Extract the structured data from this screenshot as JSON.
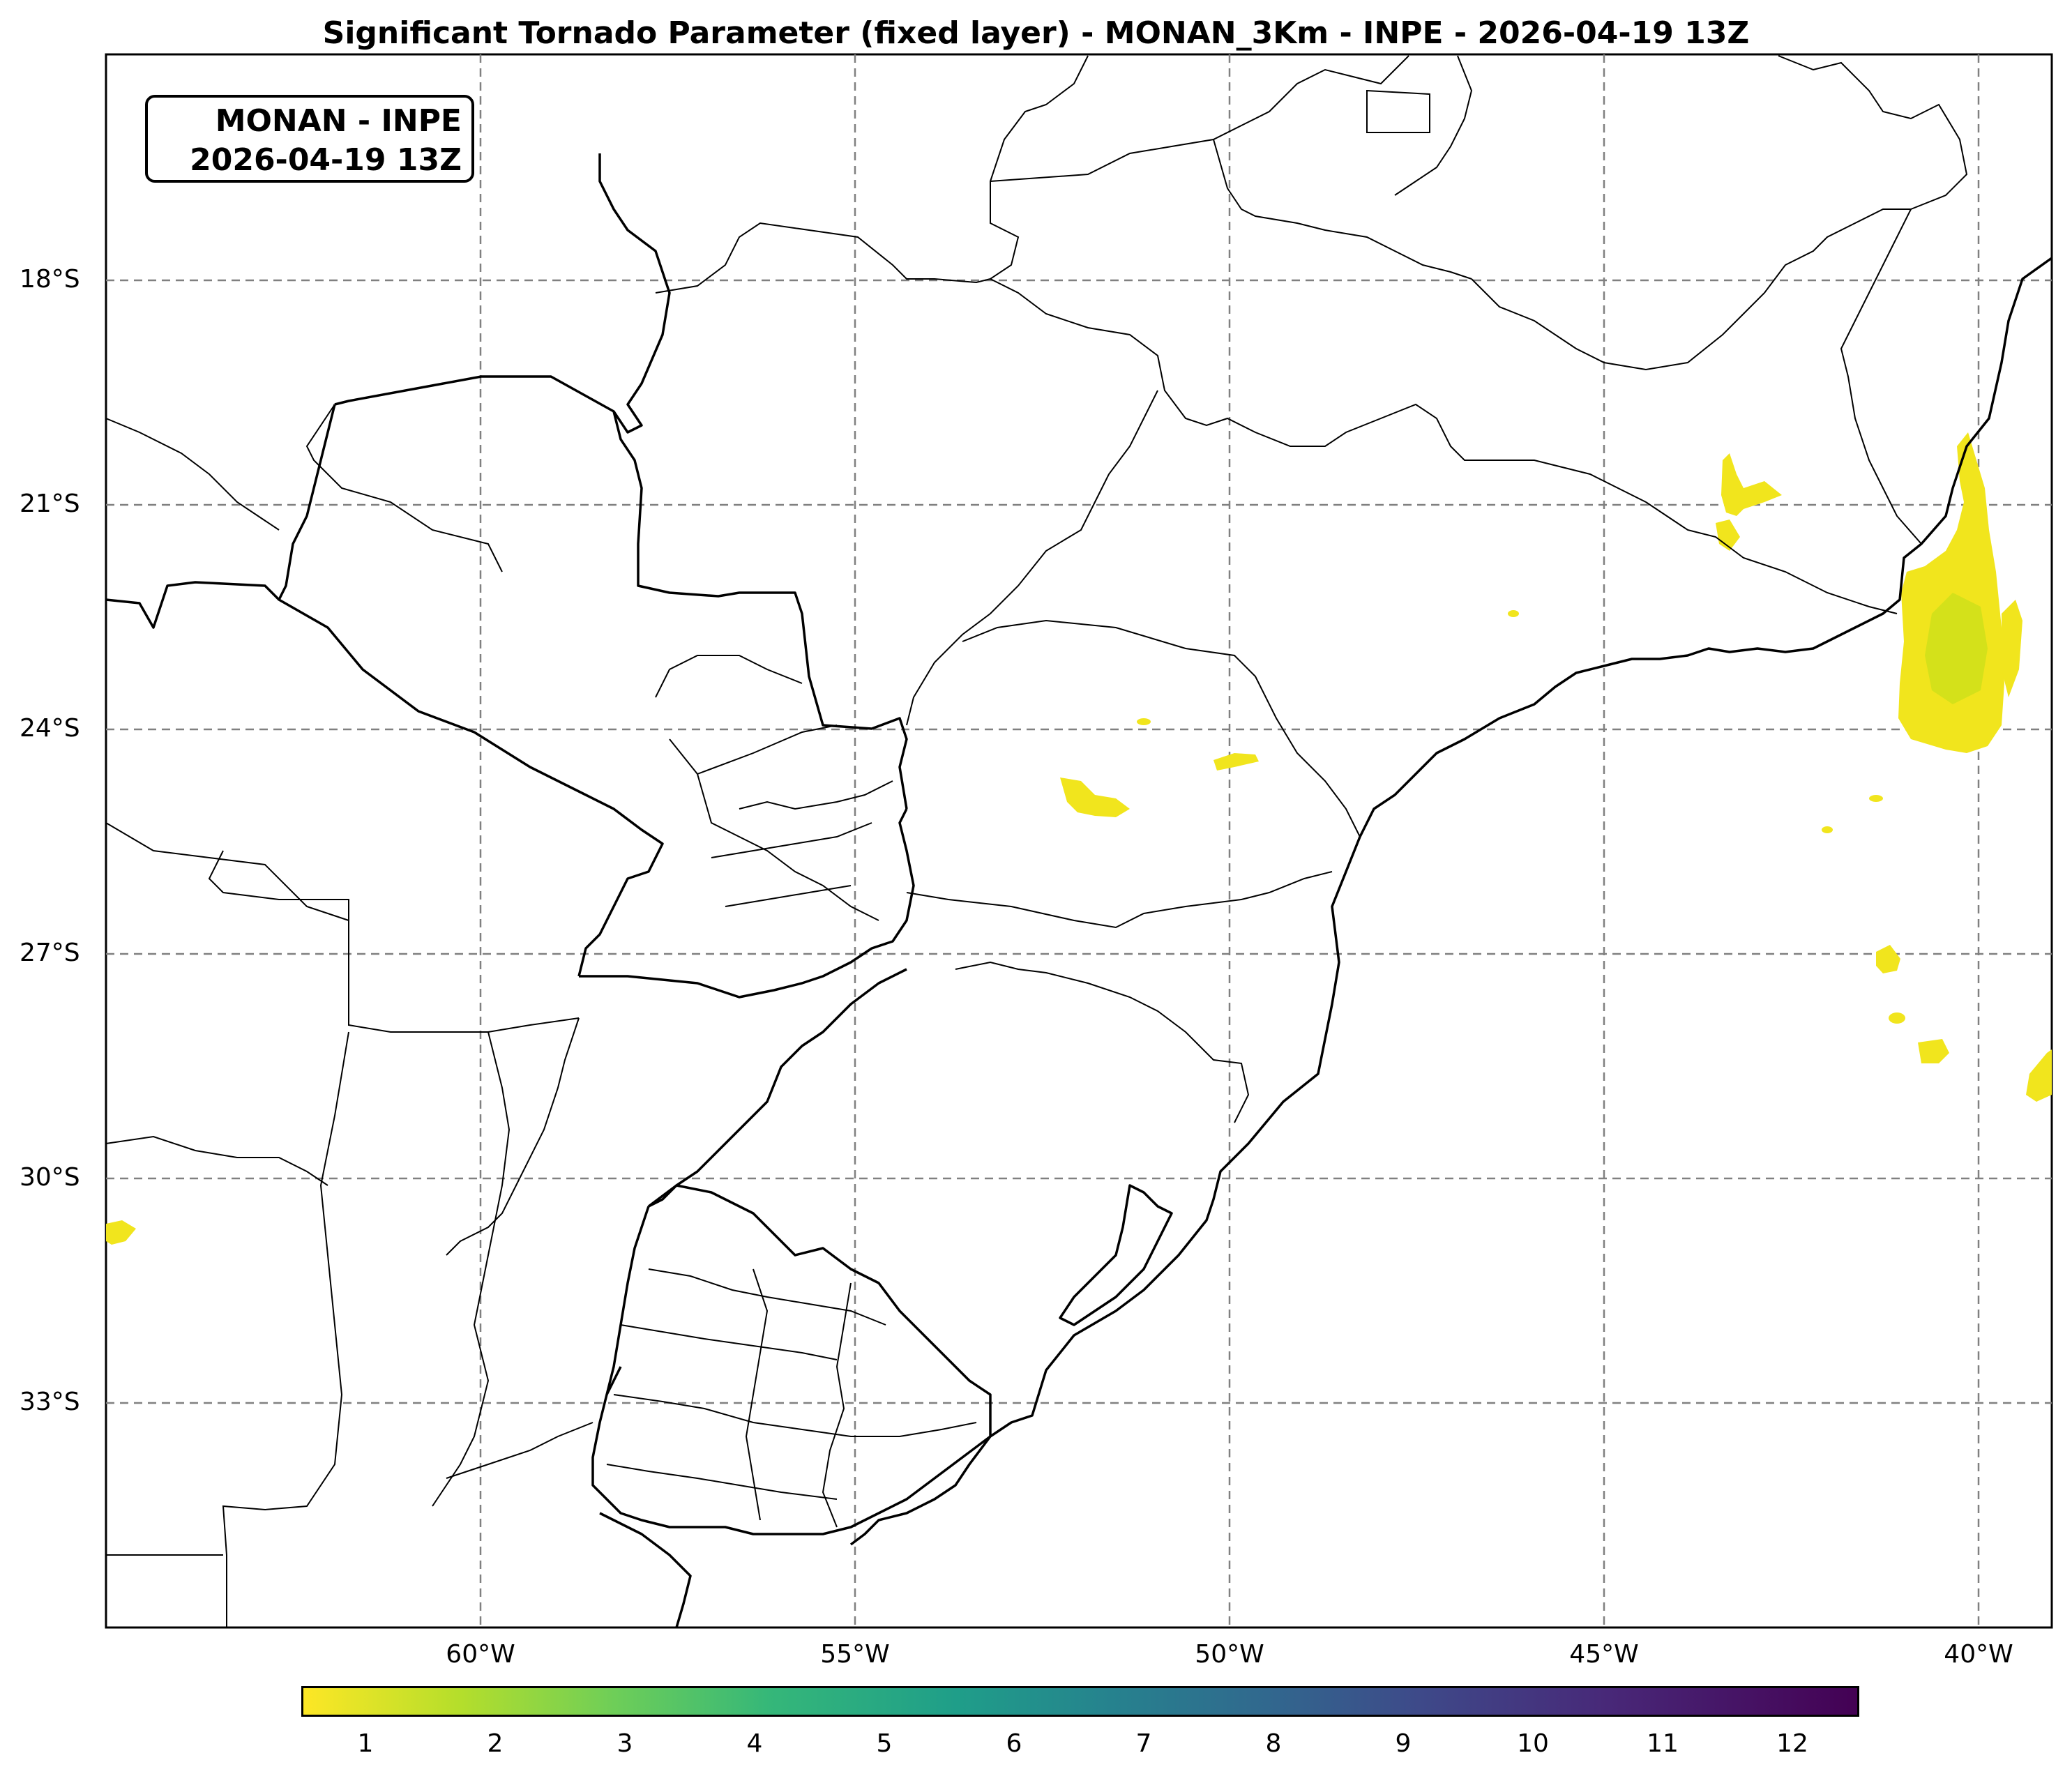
{
  "title": "Significant Tornado Parameter (fixed layer) - MONAN_3Km - INPE - 2026-04-19 13Z",
  "badge": {
    "line1": "MONAN - INPE",
    "line2": "2026-04-19 13Z"
  },
  "map": {
    "lon_range": [
      -65,
      -39
    ],
    "lat_range": [
      -36,
      -15
    ],
    "lon_ticks": [
      "60°W",
      "55°W",
      "50°W",
      "45°W",
      "40°W"
    ],
    "lat_ticks": [
      "18°S",
      "21°S",
      "24°S",
      "27°S",
      "30°S",
      "33°S"
    ],
    "gridlines": "dashed gray"
  },
  "colorbar": {
    "colormap": "viridis_r",
    "range": [
      0.5,
      12.5
    ],
    "ticks": [
      "1",
      "2",
      "3",
      "4",
      "5",
      "6",
      "7",
      "8",
      "9",
      "10",
      "11",
      "12"
    ]
  }
}
